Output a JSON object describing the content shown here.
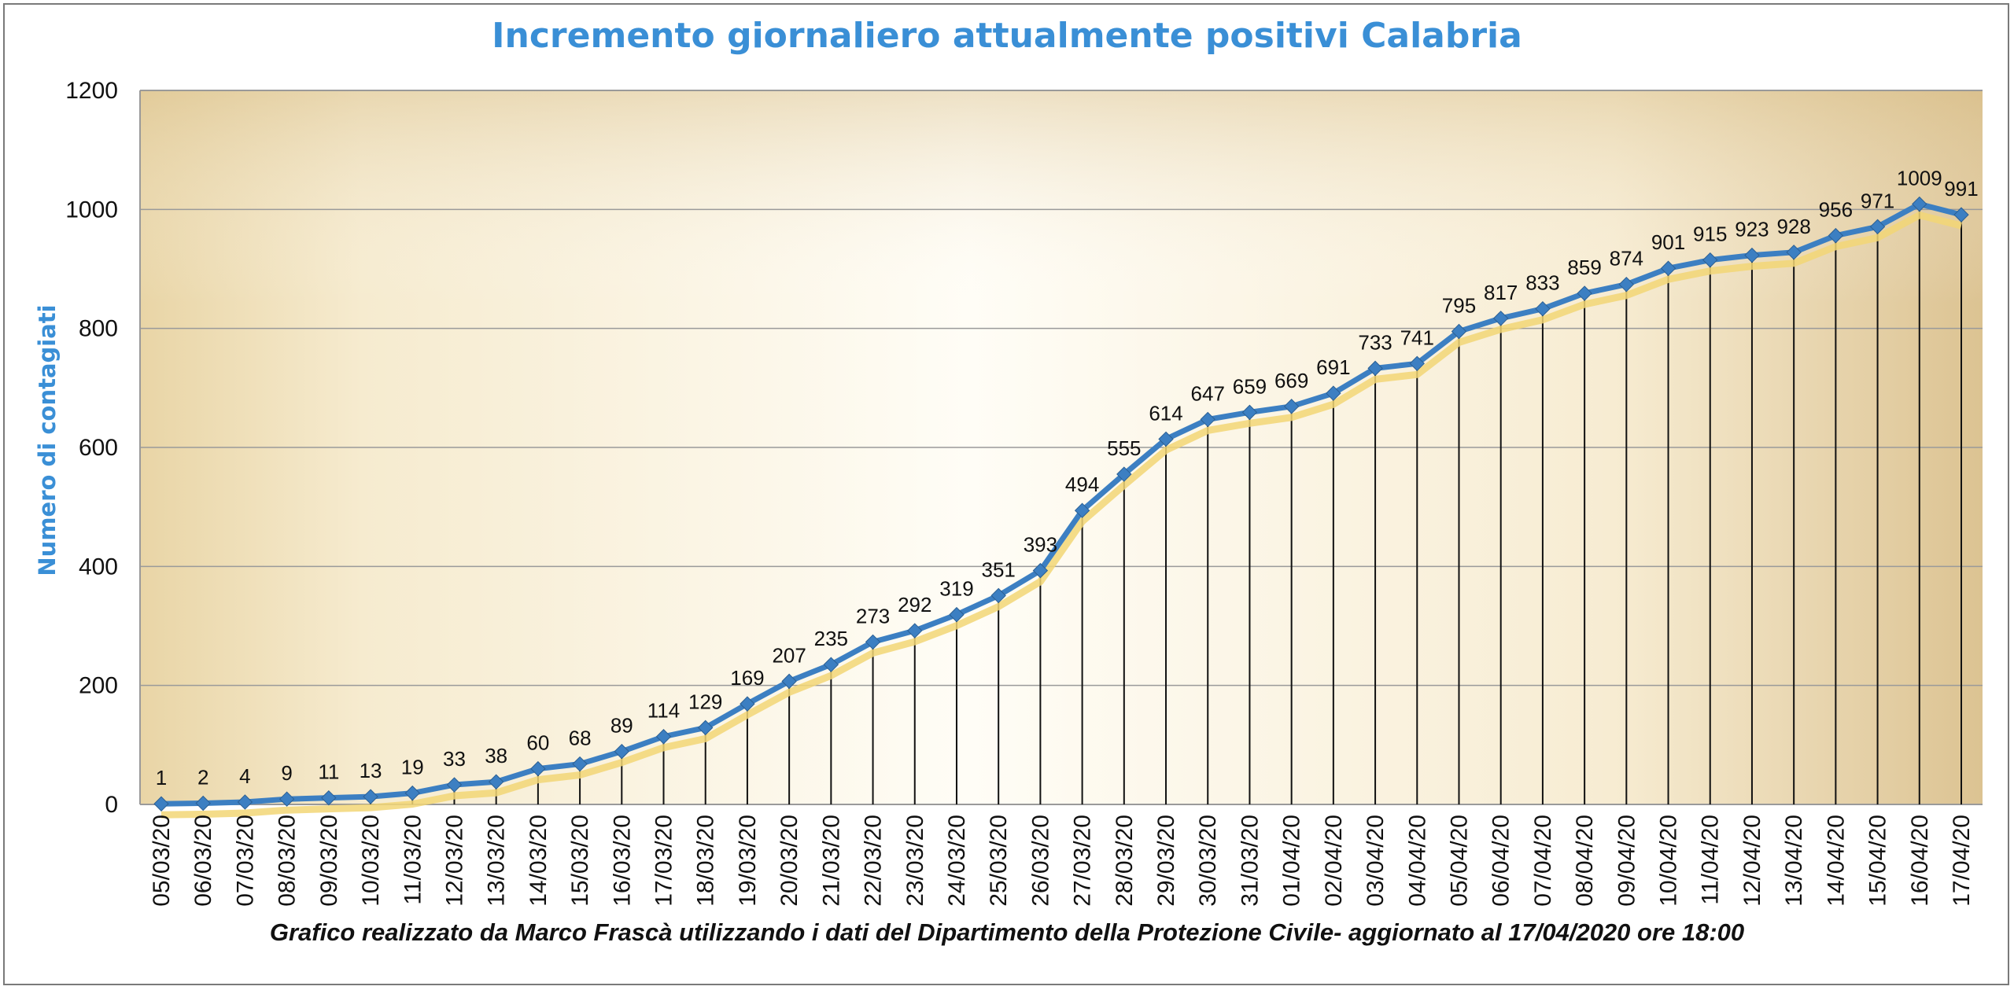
{
  "chart_data": {
    "type": "line",
    "title": "Incremento giornaliero attualmente positivi Calabria",
    "ylabel": "Numero di contagiati",
    "xlabel": "",
    "caption": "Grafico  realizzato da Marco Frascà  utilizzando i dati del Dipartimento  della Protezione Civile- aggiornato al 17/04/2020 ore 18:00",
    "ylim": [
      0,
      1200
    ],
    "yticks": [
      0,
      200,
      400,
      600,
      800,
      1000,
      1200
    ],
    "grid": "horizontal",
    "categories": [
      "05/03/20",
      "06/03/20",
      "07/03/20",
      "08/03/20",
      "09/03/20",
      "10/03/20",
      "11/03/20",
      "12/03/20",
      "13/03/20",
      "14/03/20",
      "15/03/20",
      "16/03/20",
      "17/03/20",
      "18/03/20",
      "19/03/20",
      "20/03/20",
      "21/03/20",
      "22/03/20",
      "23/03/20",
      "24/03/20",
      "25/03/20",
      "26/03/20",
      "27/03/20",
      "28/03/20",
      "29/03/20",
      "30/03/20",
      "31/03/20",
      "01/04/20",
      "02/04/20",
      "03/04/20",
      "04/04/20",
      "05/04/20",
      "06/04/20",
      "07/04/20",
      "08/04/20",
      "09/04/20",
      "10/04/20",
      "11/04/20",
      "12/04/20",
      "13/04/20",
      "14/04/20",
      "15/04/20",
      "16/04/20",
      "17/04/20"
    ],
    "series": [
      {
        "values": [
          1,
          2,
          4,
          9,
          11,
          13,
          19,
          33,
          38,
          60,
          68,
          89,
          114,
          129,
          169,
          207,
          235,
          273,
          292,
          319,
          351,
          393,
          494,
          555,
          614,
          647,
          659,
          669,
          691,
          733,
          741,
          795,
          817,
          833,
          859,
          874,
          901,
          915,
          923,
          928,
          956,
          971,
          1009,
          991
        ]
      }
    ],
    "colors": {
      "line": "#3c7fc2",
      "marker": "#3c7fc2",
      "shadow": "#f2d675",
      "grid": "#9a9a9a",
      "title": "#3a8fd6"
    }
  }
}
